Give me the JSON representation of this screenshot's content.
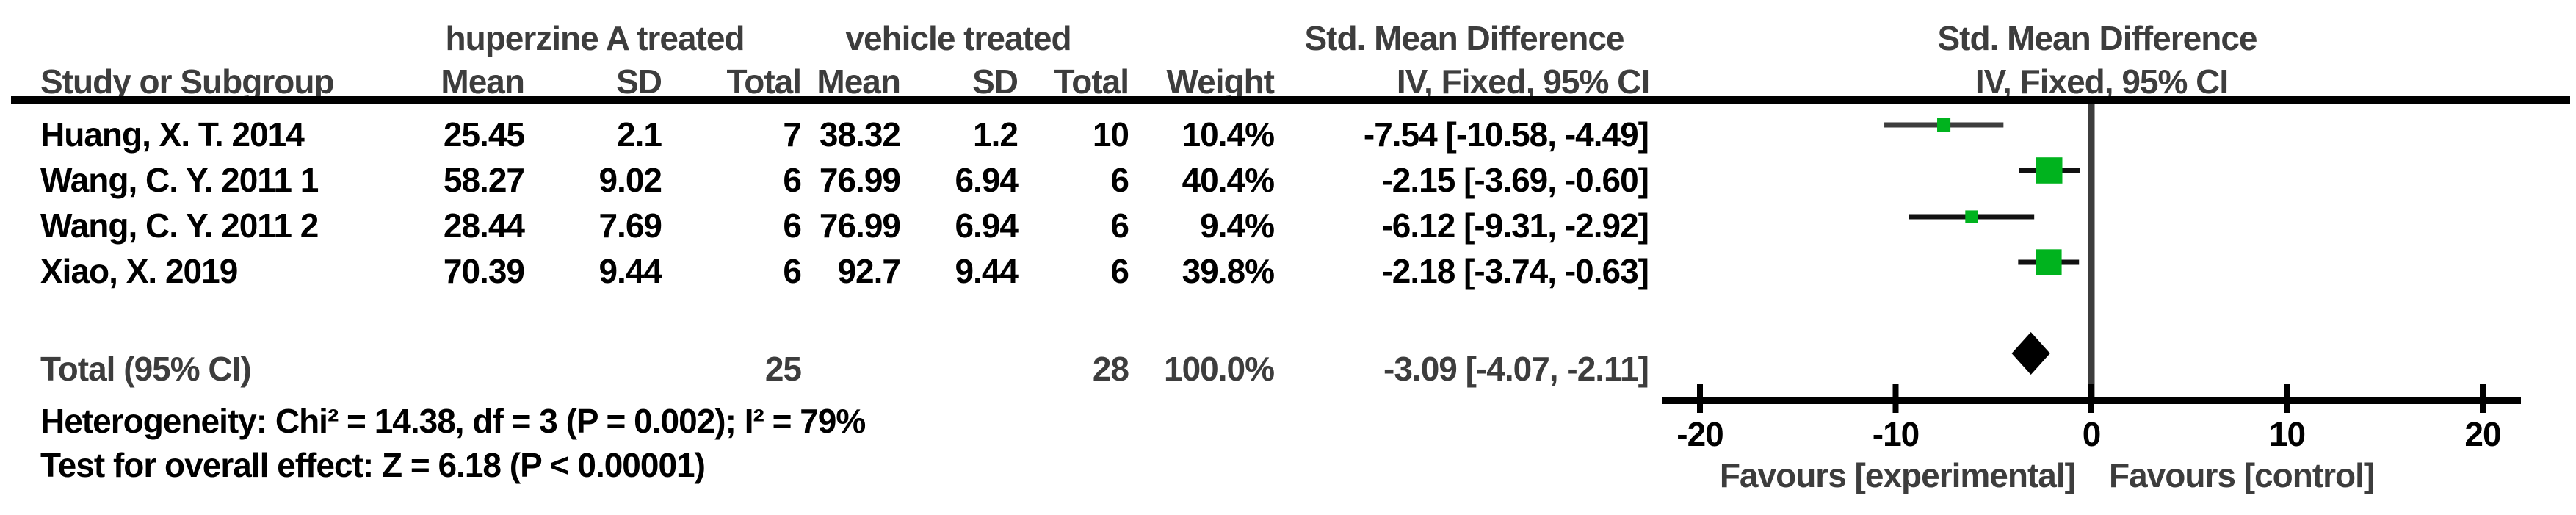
{
  "header": {
    "group_experimental": "huperzine A treated",
    "group_control": "vehicle treated",
    "smd_title_table": "Std. Mean Difference",
    "smd_title_plot": "Std. Mean Difference",
    "method_table": "IV, Fixed, 95% CI",
    "method_plot": "IV, Fixed, 95% CI",
    "columns": {
      "study": "Study or Subgroup",
      "mean1": "Mean",
      "sd1": "SD",
      "total1": "Total",
      "mean2": "Mean",
      "sd2": "SD",
      "total2": "Total",
      "weight": "Weight"
    }
  },
  "rows": [
    {
      "study": "Huang, X. T. 2014",
      "mean1": "25.45",
      "sd1": "2.1",
      "total1": "7",
      "mean2": "38.32",
      "sd2": "1.2",
      "total2": "10",
      "weight": "10.4%",
      "ci": "-7.54 [-10.58, -4.49]"
    },
    {
      "study": "Wang, C. Y. 2011 1",
      "mean1": "58.27",
      "sd1": "9.02",
      "total1": "6",
      "mean2": "76.99",
      "sd2": "6.94",
      "total2": "6",
      "weight": "40.4%",
      "ci": "-2.15 [-3.69, -0.60]"
    },
    {
      "study": "Wang, C. Y. 2011 2",
      "mean1": "28.44",
      "sd1": "7.69",
      "total1": "6",
      "mean2": "76.99",
      "sd2": "6.94",
      "total2": "6",
      "weight": "9.4%",
      "ci": "-6.12 [-9.31, -2.92]"
    },
    {
      "study": "Xiao, X. 2019",
      "mean1": "70.39",
      "sd1": "9.44",
      "total1": "6",
      "mean2": "92.7",
      "sd2": "9.44",
      "total2": "6",
      "weight": "39.8%",
      "ci": "-2.18 [-3.74, -0.63]"
    }
  ],
  "total_row": {
    "label": "Total (95% CI)",
    "total1": "25",
    "total2": "28",
    "weight": "100.0%",
    "ci": "-3.09 [-4.07, -2.11]"
  },
  "footer": {
    "heterogeneity": "Heterogeneity: Chi² = 14.38, df = 3 (P = 0.002); I² = 79%",
    "overall_effect": "Test for overall effect: Z = 6.18 (P < 0.00001)"
  },
  "axis_labels": {
    "favours_left": "Favours [experimental]",
    "favours_right": "Favours [control]"
  },
  "colors": {
    "square_green": "#00b31e",
    "ci_bar_row1": "#3d3d3d",
    "ci_bar": "#111111",
    "diamond": "#000000",
    "zero_line_grey": "#3d3d3d",
    "axis_black": "#000000",
    "header_text_grey": "#3d3d3d",
    "data_text_black": "#000000"
  },
  "chart_data": {
    "type": "forest",
    "title": "Std. Mean Difference",
    "effect_model": "IV, Fixed, 95% CI",
    "studies": [
      {
        "name": "Huang, X. T. 2014",
        "estimate": -7.54,
        "ci_low": -10.58,
        "ci_high": -4.49,
        "weight_pct": 10.4
      },
      {
        "name": "Wang, C. Y. 2011 1",
        "estimate": -2.15,
        "ci_low": -3.69,
        "ci_high": -0.6,
        "weight_pct": 40.4
      },
      {
        "name": "Wang, C. Y. 2011 2",
        "estimate": -6.12,
        "ci_low": -9.31,
        "ci_high": -2.92,
        "weight_pct": 9.4
      },
      {
        "name": "Xiao, X. 2019",
        "estimate": -2.18,
        "ci_low": -3.74,
        "ci_high": -0.63,
        "weight_pct": 39.8
      }
    ],
    "total": {
      "label": "Total (95% CI)",
      "estimate": -3.09,
      "ci_low": -4.07,
      "ci_high": -2.11,
      "weight_pct": 100.0,
      "n_experimental": 25,
      "n_control": 28
    },
    "axis": {
      "min": -20,
      "max": 20,
      "ticks": [
        -20,
        -10,
        0,
        10,
        20
      ],
      "zero_reference_line": true
    },
    "heterogeneity": {
      "chi2": 14.38,
      "df": 3,
      "p": "0.002",
      "i2_pct": 79
    },
    "overall_effect": {
      "z": 6.18,
      "p": "< 0.00001"
    },
    "legend": {
      "left_of_zero": "Favours [experimental]",
      "right_of_zero": "Favours [control]"
    }
  }
}
